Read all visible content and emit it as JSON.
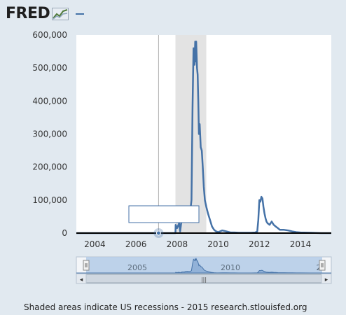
{
  "header": {
    "logo_text": "FRED",
    "logo_icon": "line-chart-icon",
    "series_color": "#4572a7"
  },
  "chart_data": {
    "type": "line",
    "title": "",
    "xlabel": "",
    "ylabel": "",
    "xlim": [
      2003.1,
      2015.5
    ],
    "ylim": [
      0,
      600000
    ],
    "yticks": [
      0,
      100000,
      200000,
      300000,
      400000,
      500000,
      600000
    ],
    "ytick_labels": [
      "0",
      "100,000",
      "200,000",
      "300,000",
      "400,000",
      "500,000",
      "600,000"
    ],
    "xticks": [
      2004,
      2006,
      2008,
      2010,
      2012,
      2014
    ],
    "xtick_labels": [
      "2004",
      "2006",
      "2008",
      "2010",
      "2012",
      "2014"
    ],
    "grid": false,
    "recession": [
      {
        "start": 2007.92,
        "end": 2009.42
      }
    ],
    "crosshair_x": 2007.1,
    "tooltip": {
      "text": ""
    },
    "series": [
      {
        "color": "#4572a7",
        "x": [
          2003.1,
          2007.92,
          2007.93,
          2008.0,
          2008.1,
          2008.15,
          2008.2,
          2008.28,
          2008.35,
          2008.4,
          2008.5,
          2008.6,
          2008.65,
          2008.7,
          2008.75,
          2008.8,
          2008.85,
          2008.88,
          2008.9,
          2008.93,
          2008.97,
          2009.0,
          2009.03,
          2009.06,
          2009.1,
          2009.15,
          2009.2,
          2009.25,
          2009.3,
          2009.35,
          2009.42,
          2009.5,
          2009.6,
          2009.7,
          2009.8,
          2009.9,
          2010.0,
          2010.2,
          2010.4,
          2010.6,
          2010.8,
          2011.0,
          2011.2,
          2011.4,
          2011.6,
          2011.8,
          2011.9,
          2011.95,
          2012.0,
          2012.05,
          2012.1,
          2012.15,
          2012.2,
          2012.25,
          2012.3,
          2012.35,
          2012.4,
          2012.5,
          2012.6,
          2012.7,
          2012.8,
          2012.9,
          2013.0,
          2013.2,
          2013.4,
          2013.6,
          2013.8,
          2014.0,
          2014.5,
          2015.0,
          2015.5
        ],
        "values": [
          0,
          0,
          25000,
          15000,
          30000,
          5000,
          30000,
          45000,
          40000,
          60000,
          70000,
          60000,
          70000,
          100000,
          380000,
          560000,
          510000,
          580000,
          520000,
          580000,
          500000,
          480000,
          400000,
          300000,
          330000,
          260000,
          250000,
          200000,
          140000,
          100000,
          80000,
          60000,
          40000,
          20000,
          10000,
          5000,
          3000,
          8000,
          5000,
          2000,
          2000,
          1000,
          1000,
          1000,
          1000,
          2000,
          5000,
          40000,
          100000,
          95000,
          110000,
          105000,
          80000,
          60000,
          45000,
          35000,
          30000,
          25000,
          35000,
          25000,
          20000,
          15000,
          10000,
          10000,
          8000,
          5000,
          3000,
          2000,
          1000,
          0,
          0
        ]
      }
    ]
  },
  "navigator": {
    "labels": [
      "2005",
      "2010",
      "2"
    ],
    "scrollbar_grip": "|||",
    "left_arrow": "◂",
    "right_arrow": "▸"
  },
  "footer": {
    "text": "Shaded areas indicate US recessions - 2015 research.stlouisfed.org"
  }
}
